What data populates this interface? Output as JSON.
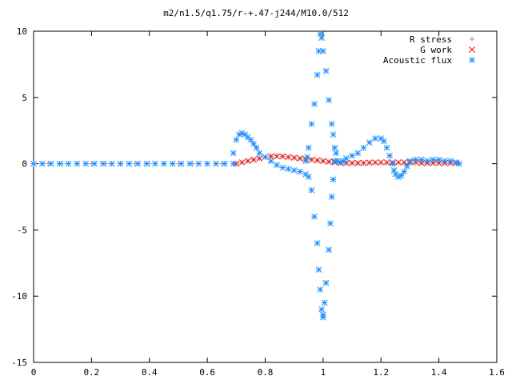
{
  "chart_data": {
    "type": "scatter",
    "title": "m2/n1.5/q1.75/r-+.47-j244/M10.0/512",
    "xlabel": "",
    "ylabel": "",
    "xlim": [
      0,
      1.6
    ],
    "ylim": [
      -15,
      10
    ],
    "xticks": [
      0,
      0.2,
      0.4,
      0.6,
      0.8,
      1,
      1.2,
      1.4,
      1.6
    ],
    "xtick_labels": [
      "0",
      "0.2",
      "0.4",
      "0.6",
      "0.8",
      "1",
      "1.2",
      "1.4",
      "1.6"
    ],
    "yticks": [
      -15,
      -10,
      -5,
      0,
      5,
      10
    ],
    "ytick_labels": [
      "-15",
      "-10",
      "-5",
      "0",
      "5",
      "10"
    ],
    "grid": false,
    "legend_position": "top-right",
    "series": [
      {
        "name": "R stress",
        "marker": "plus",
        "color": "#a0a0a0",
        "points": [
          [
            0.0,
            0.0
          ],
          [
            0.05,
            0.0
          ],
          [
            0.1,
            0.0
          ],
          [
            0.15,
            0.0
          ],
          [
            0.2,
            0.0
          ],
          [
            0.25,
            0.0
          ],
          [
            0.3,
            0.0
          ],
          [
            0.35,
            0.0
          ],
          [
            0.4,
            0.0
          ],
          [
            0.45,
            0.0
          ],
          [
            0.5,
            0.0
          ],
          [
            0.55,
            0.0
          ],
          [
            0.6,
            0.0
          ],
          [
            0.65,
            0.0
          ],
          [
            0.7,
            0.0
          ],
          [
            0.72,
            0.1
          ],
          [
            0.74,
            0.2
          ],
          [
            0.76,
            0.3
          ],
          [
            0.78,
            0.4
          ],
          [
            0.8,
            0.5
          ],
          [
            0.82,
            0.55
          ],
          [
            0.84,
            0.6
          ],
          [
            0.86,
            0.55
          ],
          [
            0.88,
            0.5
          ],
          [
            0.9,
            0.45
          ],
          [
            0.92,
            0.4
          ],
          [
            0.94,
            0.35
          ],
          [
            0.96,
            0.3
          ],
          [
            0.98,
            0.25
          ],
          [
            1.0,
            0.2
          ],
          [
            1.02,
            0.15
          ],
          [
            1.04,
            0.1
          ],
          [
            1.06,
            0.08
          ],
          [
            1.08,
            0.05
          ],
          [
            1.1,
            0.05
          ],
          [
            1.12,
            0.05
          ],
          [
            1.14,
            0.05
          ],
          [
            1.16,
            0.05
          ],
          [
            1.18,
            0.05
          ],
          [
            1.2,
            0.05
          ],
          [
            1.22,
            0.05
          ],
          [
            1.24,
            0.05
          ],
          [
            1.26,
            0.05
          ],
          [
            1.28,
            0.05
          ],
          [
            1.3,
            0.05
          ],
          [
            1.32,
            0.05
          ],
          [
            1.34,
            0.05
          ],
          [
            1.36,
            0.05
          ],
          [
            1.38,
            0.05
          ],
          [
            1.4,
            0.05
          ],
          [
            1.42,
            0.05
          ],
          [
            1.44,
            0.05
          ],
          [
            1.46,
            0.05
          ]
        ]
      },
      {
        "name": "G work",
        "marker": "cross",
        "color": "#ff0000",
        "points": [
          [
            0.7,
            0.0
          ],
          [
            0.72,
            0.1
          ],
          [
            0.74,
            0.2
          ],
          [
            0.76,
            0.3
          ],
          [
            0.78,
            0.4
          ],
          [
            0.8,
            0.5
          ],
          [
            0.82,
            0.55
          ],
          [
            0.84,
            0.55
          ],
          [
            0.86,
            0.55
          ],
          [
            0.88,
            0.5
          ],
          [
            0.9,
            0.45
          ],
          [
            0.92,
            0.4
          ],
          [
            0.94,
            0.35
          ],
          [
            0.96,
            0.3
          ],
          [
            0.98,
            0.25
          ],
          [
            1.0,
            0.2
          ],
          [
            1.02,
            0.15
          ],
          [
            1.04,
            0.1
          ],
          [
            1.06,
            0.05
          ],
          [
            1.08,
            0.05
          ],
          [
            1.1,
            0.05
          ],
          [
            1.12,
            0.05
          ],
          [
            1.14,
            0.05
          ],
          [
            1.16,
            0.08
          ],
          [
            1.18,
            0.1
          ],
          [
            1.2,
            0.1
          ],
          [
            1.22,
            0.1
          ],
          [
            1.24,
            0.1
          ],
          [
            1.26,
            0.1
          ],
          [
            1.28,
            0.1
          ],
          [
            1.3,
            0.1
          ],
          [
            1.32,
            0.1
          ],
          [
            1.34,
            0.05
          ],
          [
            1.36,
            0.05
          ],
          [
            1.38,
            0.05
          ],
          [
            1.4,
            0.05
          ],
          [
            1.42,
            0.05
          ],
          [
            1.44,
            0.05
          ],
          [
            1.46,
            0.05
          ]
        ]
      },
      {
        "name": "Acoustic flux",
        "marker": "star",
        "color": "#1e90ff",
        "points": [
          [
            0.0,
            0.0
          ],
          [
            0.03,
            0.0
          ],
          [
            0.06,
            0.0
          ],
          [
            0.09,
            0.0
          ],
          [
            0.12,
            0.0
          ],
          [
            0.15,
            0.0
          ],
          [
            0.18,
            0.0
          ],
          [
            0.21,
            0.0
          ],
          [
            0.24,
            0.0
          ],
          [
            0.27,
            0.0
          ],
          [
            0.3,
            0.0
          ],
          [
            0.33,
            0.0
          ],
          [
            0.36,
            0.0
          ],
          [
            0.39,
            0.0
          ],
          [
            0.42,
            0.0
          ],
          [
            0.45,
            0.0
          ],
          [
            0.48,
            0.0
          ],
          [
            0.51,
            0.0
          ],
          [
            0.54,
            0.0
          ],
          [
            0.57,
            0.0
          ],
          [
            0.6,
            0.0
          ],
          [
            0.63,
            0.0
          ],
          [
            0.66,
            0.0
          ],
          [
            0.69,
            0.0
          ],
          [
            0.69,
            0.8
          ],
          [
            0.7,
            1.8
          ],
          [
            0.71,
            2.2
          ],
          [
            0.72,
            2.3
          ],
          [
            0.73,
            2.2
          ],
          [
            0.74,
            2.0
          ],
          [
            0.75,
            1.8
          ],
          [
            0.76,
            1.5
          ],
          [
            0.77,
            1.2
          ],
          [
            0.78,
            0.8
          ],
          [
            0.8,
            0.5
          ],
          [
            0.82,
            0.2
          ],
          [
            0.84,
            -0.1
          ],
          [
            0.86,
            -0.3
          ],
          [
            0.88,
            -0.4
          ],
          [
            0.9,
            -0.5
          ],
          [
            0.92,
            -0.6
          ],
          [
            0.94,
            -0.8
          ],
          [
            0.95,
            -1.0
          ],
          [
            0.96,
            -2.0
          ],
          [
            0.97,
            -4.0
          ],
          [
            0.98,
            -6.0
          ],
          [
            0.985,
            -8.0
          ],
          [
            0.99,
            -9.5
          ],
          [
            0.995,
            -11.0
          ],
          [
            1.0,
            -11.6
          ],
          [
            1.0,
            -11.4
          ],
          [
            1.005,
            -10.5
          ],
          [
            1.01,
            -9.0
          ],
          [
            1.02,
            -6.5
          ],
          [
            1.025,
            -4.5
          ],
          [
            1.03,
            -2.5
          ],
          [
            1.035,
            -1.2
          ],
          [
            1.04,
            0.2
          ],
          [
            1.045,
            0.8
          ],
          [
            1.04,
            1.2
          ],
          [
            1.035,
            2.2
          ],
          [
            1.03,
            3.0
          ],
          [
            1.02,
            4.8
          ],
          [
            1.01,
            7.0
          ],
          [
            1.0,
            8.5
          ],
          [
            0.995,
            9.5
          ],
          [
            0.99,
            9.8
          ],
          [
            0.985,
            8.5
          ],
          [
            0.98,
            6.7
          ],
          [
            0.97,
            4.5
          ],
          [
            0.96,
            3.0
          ],
          [
            0.95,
            1.2
          ],
          [
            0.945,
            0.5
          ],
          [
            0.94,
            0.2
          ],
          [
            1.05,
            0.2
          ],
          [
            1.06,
            0.1
          ],
          [
            1.07,
            0.2
          ],
          [
            1.08,
            0.4
          ],
          [
            1.1,
            0.6
          ],
          [
            1.12,
            0.8
          ],
          [
            1.14,
            1.2
          ],
          [
            1.16,
            1.6
          ],
          [
            1.18,
            1.9
          ],
          [
            1.2,
            1.9
          ],
          [
            1.21,
            1.7
          ],
          [
            1.22,
            1.2
          ],
          [
            1.23,
            0.6
          ],
          [
            1.24,
            0.0
          ],
          [
            1.245,
            -0.5
          ],
          [
            1.25,
            -0.8
          ],
          [
            1.26,
            -1.0
          ],
          [
            1.27,
            -0.9
          ],
          [
            1.28,
            -0.6
          ],
          [
            1.29,
            -0.2
          ],
          [
            1.3,
            0.2
          ],
          [
            1.32,
            0.3
          ],
          [
            1.34,
            0.3
          ],
          [
            1.36,
            0.2
          ],
          [
            1.38,
            0.3
          ],
          [
            1.4,
            0.3
          ],
          [
            1.42,
            0.2
          ],
          [
            1.44,
            0.2
          ],
          [
            1.46,
            0.1
          ],
          [
            1.47,
            0.0
          ]
        ]
      }
    ]
  }
}
